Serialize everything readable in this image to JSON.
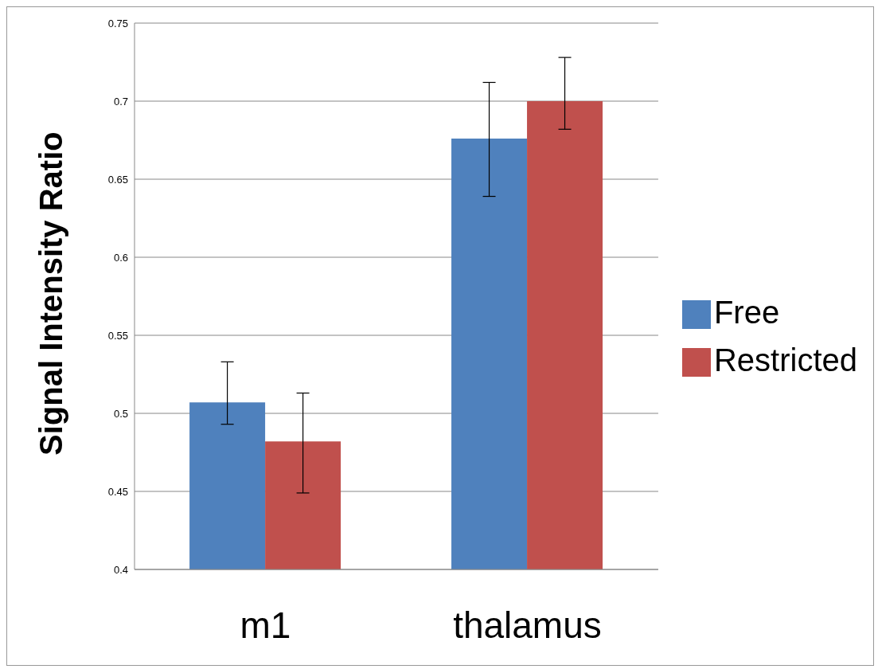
{
  "chart_data": {
    "type": "bar",
    "ylabel": "Signal Intensity Ratio",
    "categories": [
      "m1",
      "thalamus"
    ],
    "series": [
      {
        "name": "Free",
        "color": "#4f81bd",
        "values": [
          0.507,
          0.676
        ],
        "errors": [
          [
            0.493,
            0.533
          ],
          [
            0.639,
            0.712
          ]
        ]
      },
      {
        "name": "Restricted",
        "color": "#c0504d",
        "values": [
          0.482,
          0.7
        ],
        "errors": [
          [
            0.449,
            0.513
          ],
          [
            0.682,
            0.728
          ]
        ]
      }
    ],
    "ylim": [
      0.4,
      0.75
    ],
    "yticks": [
      0.4,
      0.45,
      0.5,
      0.55,
      0.6,
      0.65,
      0.7,
      0.75
    ],
    "grid": "y",
    "legend": "right"
  }
}
